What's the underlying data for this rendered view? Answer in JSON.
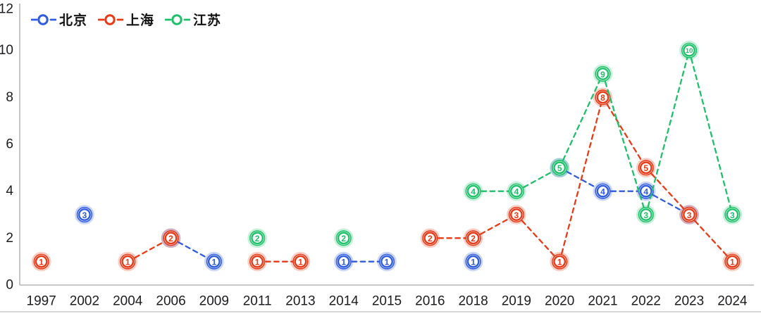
{
  "chart_data": {
    "type": "line",
    "title": "",
    "categories": [
      "1997",
      "2002",
      "2004",
      "2006",
      "2009",
      "2011",
      "2013",
      "2014",
      "2015",
      "2016",
      "2018",
      "2019",
      "2020",
      "2021",
      "2022",
      "2023",
      "2024"
    ],
    "series": [
      {
        "name": "北京",
        "color": "#2f5be0",
        "values": [
          null,
          3,
          null,
          2,
          1,
          null,
          null,
          1,
          1,
          null,
          1,
          null,
          5,
          4,
          4,
          3,
          null
        ]
      },
      {
        "name": "上海",
        "color": "#e83a17",
        "values": [
          1,
          null,
          1,
          2,
          null,
          1,
          1,
          null,
          null,
          2,
          2,
          3,
          1,
          8,
          5,
          3,
          1
        ]
      },
      {
        "name": "江苏",
        "color": "#1fc06a",
        "values": [
          null,
          null,
          null,
          null,
          null,
          2,
          null,
          2,
          null,
          null,
          4,
          4,
          5,
          9,
          3,
          10,
          3
        ]
      }
    ],
    "ylim": [
      0,
      12
    ],
    "yticks": [
      0,
      2,
      4,
      6,
      8,
      10,
      12
    ],
    "line_style": "dashed",
    "marker": "circled-number-with-value-label",
    "grid": false,
    "legend_position": "top-left",
    "axis_color": "#a3a6ab",
    "label_color": "#1b1c1f"
  }
}
